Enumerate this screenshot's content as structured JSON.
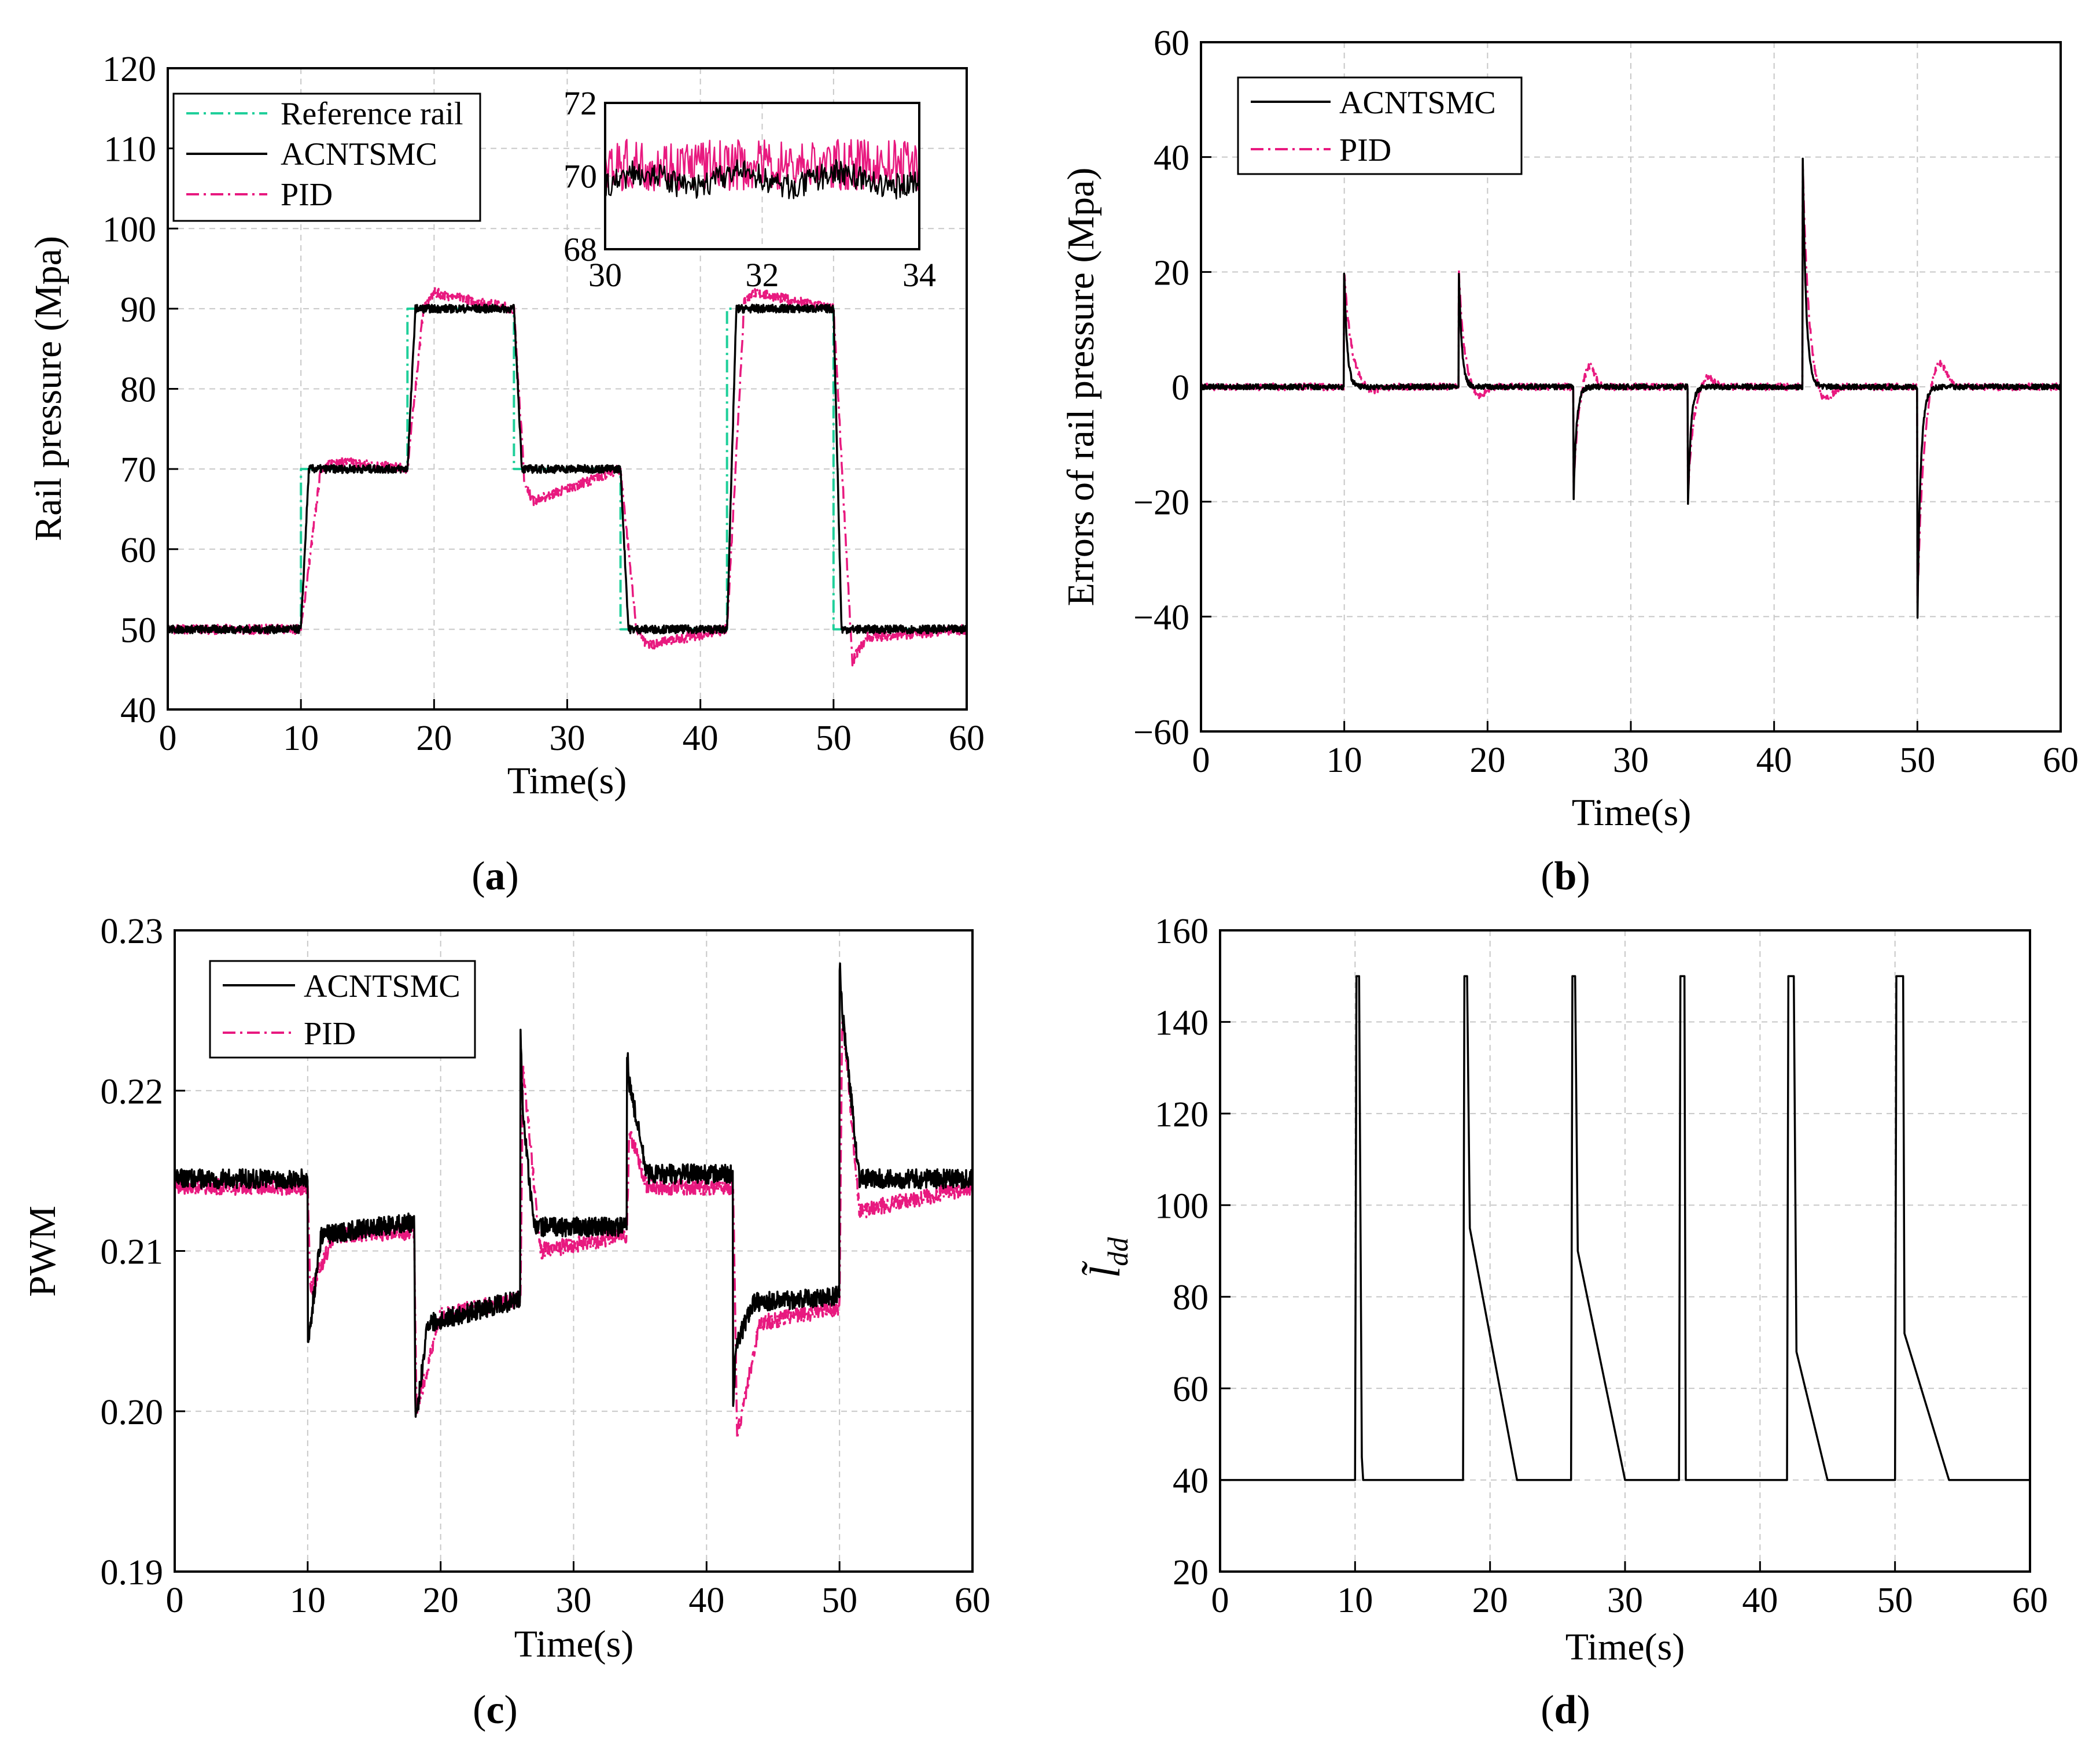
{
  "colors": {
    "acntsmc": "#000000",
    "pid": "#e8197f",
    "reference": "#1fcf9a"
  },
  "chart_data": [
    {
      "id": "a",
      "type": "line",
      "panel_label": "a",
      "xlabel": "Time(s)",
      "ylabel": "Rail pressure (Mpa)",
      "xlim": [
        0,
        60
      ],
      "ylim": [
        40,
        120
      ],
      "xticks": [
        0,
        10,
        20,
        30,
        40,
        50,
        60
      ],
      "yticks": [
        40,
        50,
        60,
        70,
        80,
        90,
        100,
        110,
        120
      ],
      "legend": [
        "Reference rail",
        "ACNTSMC",
        "PID"
      ],
      "legend_position": "top-left",
      "series": [
        {
          "name": "Reference rail",
          "style": "dash-dot",
          "x": [
            0,
            10,
            10,
            18,
            18,
            26,
            26,
            34,
            34,
            42,
            42,
            50,
            50,
            60
          ],
          "y": [
            50,
            50,
            70,
            70,
            90,
            90,
            70,
            70,
            50,
            50,
            90,
            90,
            50,
            50
          ]
        },
        {
          "name": "ACNTSMC",
          "style": "solid",
          "x": [
            0,
            10,
            10.6,
            18,
            18.6,
            26,
            26.6,
            34,
            34.6,
            42,
            42.7,
            50,
            50.6,
            60
          ],
          "y": [
            50,
            50,
            70,
            70,
            90,
            90,
            70,
            70,
            50,
            50,
            90,
            90,
            50,
            50
          ]
        },
        {
          "name": "PID",
          "style": "dash-dot",
          "x": [
            0,
            10,
            11.5,
            12.5,
            18,
            19.2,
            20,
            26,
            26.8,
            27.5,
            34,
            35.2,
            36,
            42,
            43.3,
            44,
            50,
            51.4,
            52.5,
            60
          ],
          "y": [
            50,
            50,
            70,
            71,
            70,
            90,
            92,
            90,
            68,
            66,
            70,
            50,
            48,
            50,
            91,
            92,
            90,
            46,
            49,
            50
          ]
        }
      ],
      "inset": {
        "xlim": [
          30,
          34
        ],
        "ylim": [
          68,
          72
        ],
        "xticks": [
          30,
          32,
          34
        ],
        "yticks": [
          68,
          70,
          72
        ],
        "series_means": {
          "ACNTSMC": 69.9,
          "PID": 70.3
        }
      }
    },
    {
      "id": "b",
      "type": "line",
      "panel_label": "b",
      "xlabel": "Time(s)",
      "ylabel": "Errors of rail pressure (Mpa)",
      "xlim": [
        0,
        60
      ],
      "ylim": [
        -60,
        60
      ],
      "xticks": [
        0,
        10,
        20,
        30,
        40,
        50,
        60
      ],
      "yticks": [
        -60,
        -40,
        -20,
        0,
        20,
        40,
        60
      ],
      "legend": [
        "ACNTSMC",
        "PID"
      ],
      "legend_position": "top-left",
      "series": [
        {
          "name": "ACNTSMC",
          "style": "solid",
          "spikes": [
            {
              "t": 10,
              "peak": 20,
              "decay": 0.6
            },
            {
              "t": 18,
              "peak": 20,
              "decay": 0.6
            },
            {
              "t": 26,
              "peak": -20,
              "decay": 0.6
            },
            {
              "t": 34,
              "peak": -20,
              "decay": 0.6
            },
            {
              "t": 42,
              "peak": 40,
              "decay": 0.7
            },
            {
              "t": 50,
              "peak": -40,
              "decay": 0.7
            }
          ]
        },
        {
          "name": "PID",
          "style": "dash-dot",
          "spikes": [
            {
              "t": 10,
              "peak": 20,
              "decay": 1.5,
              "overshoot": -1
            },
            {
              "t": 18,
              "peak": 20,
              "decay": 1.1,
              "overshoot": -2
            },
            {
              "t": 26,
              "peak": -18,
              "decay": 0.9,
              "overshoot": 4
            },
            {
              "t": 34,
              "peak": -18,
              "decay": 1.1,
              "overshoot": 2
            },
            {
              "t": 42,
              "peak": 39,
              "decay": 1.2,
              "overshoot": -3
            },
            {
              "t": 50,
              "peak": -38,
              "decay": 1.2,
              "overshoot": 5
            }
          ]
        }
      ]
    },
    {
      "id": "c",
      "type": "line",
      "panel_label": "c",
      "xlabel": "Time(s)",
      "ylabel": "PWM",
      "xlim": [
        0,
        60
      ],
      "ylim": [
        0.19,
        0.23
      ],
      "xticks": [
        0,
        10,
        20,
        30,
        40,
        50,
        60
      ],
      "yticks": [
        0.19,
        0.2,
        0.21,
        0.22,
        0.23
      ],
      "ytick_labels": [
        "0.19",
        "0.20",
        "0.21",
        "0.22",
        "0.23"
      ],
      "legend": [
        "ACNTSMC",
        "PID"
      ],
      "legend_position": "top-left",
      "series": [
        {
          "name": "ACNTSMC",
          "style": "solid",
          "x": [
            0,
            10,
            10,
            11,
            18,
            18,
            18.1,
            19,
            26,
            26,
            26.2,
            27,
            34,
            34,
            34.2,
            35.5,
            42,
            42,
            42.2,
            43.5,
            50,
            50,
            50.2,
            51.5,
            60
          ],
          "y": [
            0.2145,
            0.2145,
            0.204,
            0.211,
            0.2118,
            0.215,
            0.199,
            0.2055,
            0.207,
            0.2235,
            0.2185,
            0.2115,
            0.2115,
            0.2228,
            0.2205,
            0.2148,
            0.2148,
            0.2,
            0.204,
            0.2068,
            0.2072,
            0.2282,
            0.225,
            0.2145,
            0.2145
          ]
        },
        {
          "name": "PID",
          "style": "dash-dot",
          "x": [
            0,
            10,
            10.2,
            12,
            18,
            18.2,
            20,
            26,
            26.2,
            27.5,
            34,
            34.2,
            35.5,
            42,
            42.3,
            44,
            50,
            50.2,
            51.5,
            60
          ],
          "y": [
            0.214,
            0.214,
            0.2075,
            0.211,
            0.2112,
            0.2,
            0.206,
            0.207,
            0.2215,
            0.21,
            0.211,
            0.2175,
            0.214,
            0.214,
            0.1985,
            0.2055,
            0.2065,
            0.225,
            0.2125,
            0.214
          ]
        }
      ]
    },
    {
      "id": "d",
      "type": "line",
      "panel_label": "d",
      "xlabel": "Time(s)",
      "ylabel": "l̃dd",
      "ylabel_main": "l̃",
      "ylabel_sub": "dd",
      "xlim": [
        0,
        60
      ],
      "ylim": [
        20,
        160
      ],
      "xticks": [
        0,
        10,
        20,
        30,
        40,
        50,
        60
      ],
      "yticks": [
        20,
        40,
        60,
        80,
        100,
        120,
        140,
        160
      ],
      "series": [
        {
          "name": "ACNTSMC",
          "style": "solid",
          "x": [
            0,
            10,
            10.1,
            10.3,
            10.5,
            10.6,
            18,
            18.1,
            18.3,
            18.5,
            22,
            26,
            26.1,
            26.3,
            26.5,
            30,
            34,
            34.1,
            34.4,
            34.5,
            42,
            42.1,
            42.5,
            42.7,
            45,
            50,
            50.1,
            50.6,
            50.7,
            54,
            60
          ],
          "y": [
            40,
            40,
            150,
            150,
            45,
            40,
            40,
            150,
            150,
            95,
            40,
            40,
            150,
            150,
            90,
            40,
            40,
            150,
            150,
            40,
            40,
            150,
            150,
            68,
            40,
            40,
            150,
            150,
            72,
            40,
            40
          ]
        }
      ]
    }
  ]
}
